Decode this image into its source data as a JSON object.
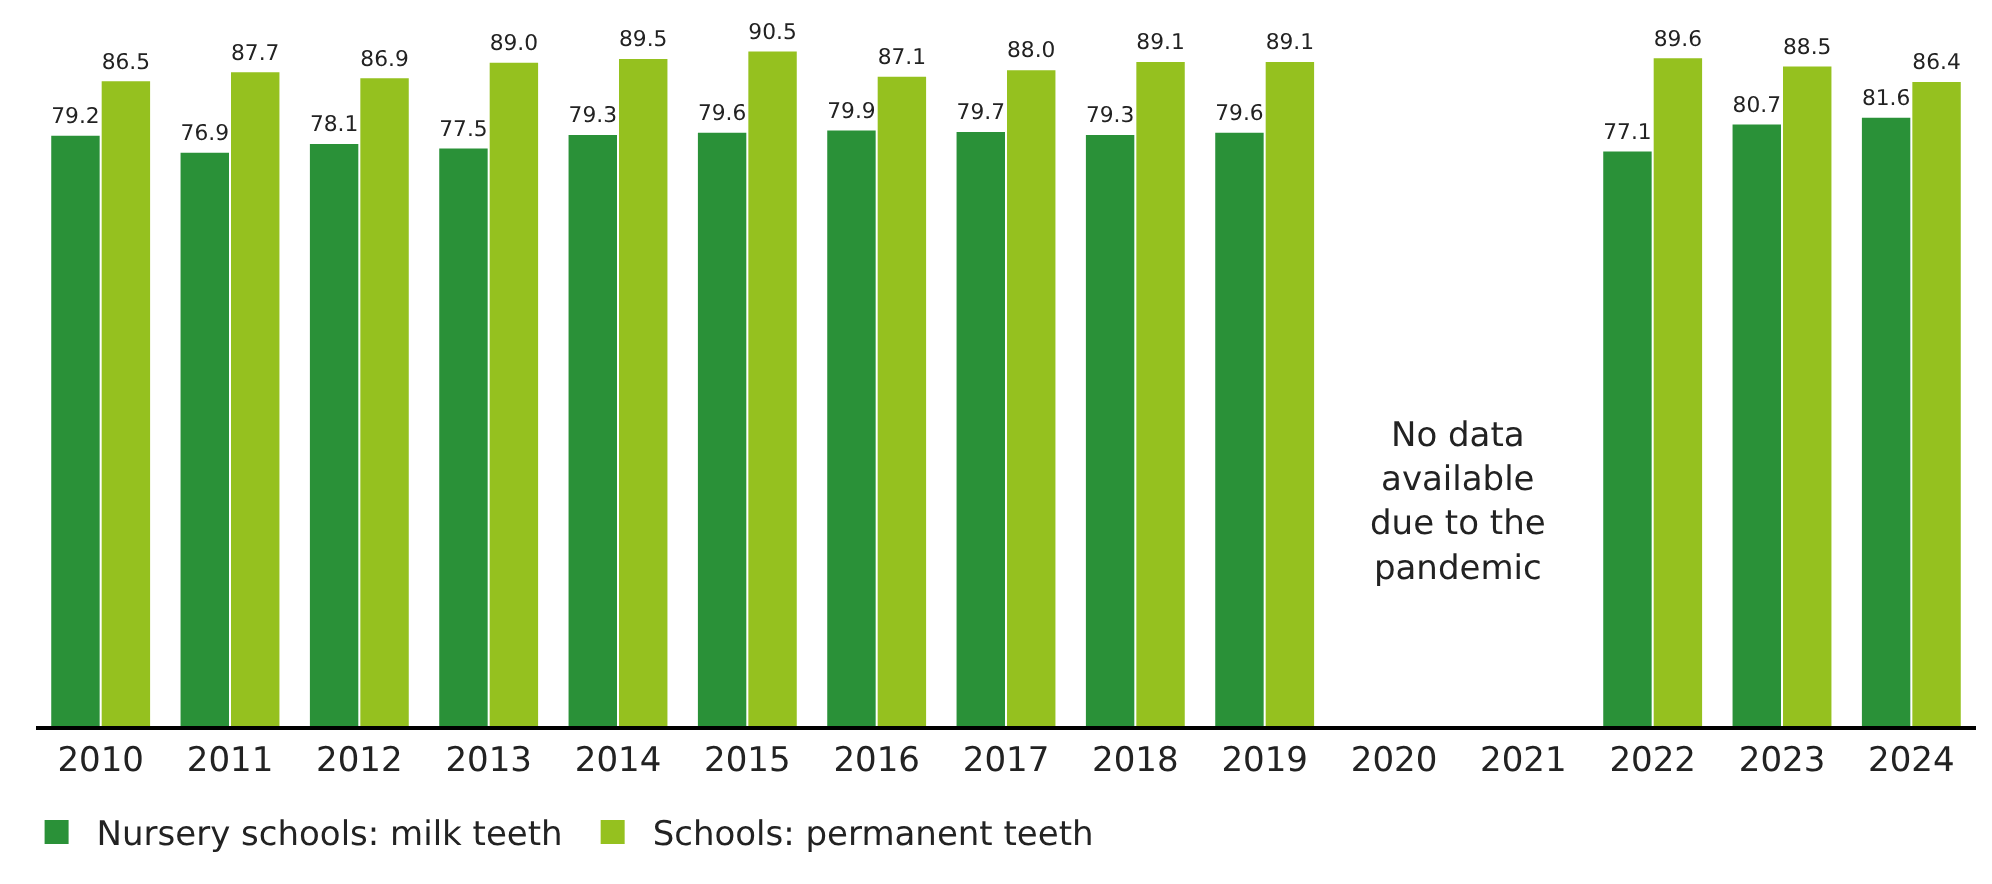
{
  "chart_data": {
    "type": "bar",
    "categories": [
      "2010",
      "2011",
      "2012",
      "2013",
      "2014",
      "2015",
      "2016",
      "2017",
      "2018",
      "2019",
      "2020",
      "2021",
      "2022",
      "2023",
      "2024"
    ],
    "series": [
      {
        "name": "Nursery schools: milk teeth",
        "color": "#2a9138",
        "values": [
          79.2,
          76.9,
          78.1,
          77.5,
          79.3,
          79.6,
          79.9,
          79.7,
          79.3,
          79.6,
          null,
          null,
          77.1,
          80.7,
          81.6
        ],
        "value_labels": [
          "79.2",
          "76.9",
          "78.1",
          "77.5",
          "79.3",
          "79.6",
          "79.9",
          "79.7",
          "79.3",
          "79.6",
          null,
          null,
          "77.1",
          "80.7",
          "81.6"
        ]
      },
      {
        "name": "Schools: permanent teeth",
        "color": "#95c11f",
        "values": [
          86.5,
          87.7,
          86.9,
          89.0,
          89.5,
          90.5,
          87.1,
          88.0,
          89.1,
          89.1,
          null,
          null,
          89.6,
          88.5,
          86.4
        ],
        "value_labels": [
          "86.5",
          "87.7",
          "86.9",
          "89.0",
          "89.5",
          "90.5",
          "87.1",
          "88.0",
          "89.1",
          "89.1",
          null,
          null,
          "89.6",
          "88.5",
          "86.4"
        ]
      }
    ],
    "tick_labels": "x",
    "grid": false,
    "legend": "bottom left",
    "annotations": [
      "No data available due to the pandemic"
    ]
  }
}
